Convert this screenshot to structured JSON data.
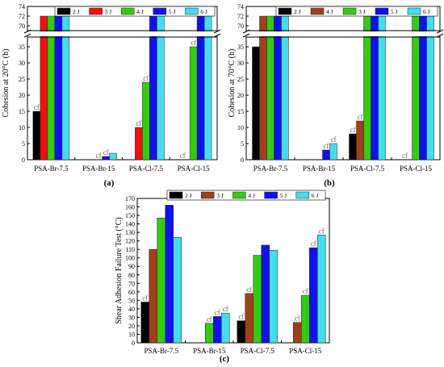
{
  "colors": {
    "2J": "#000000",
    "3J": "#ee1111",
    "4J": "#33cc11",
    "5J": "#1111ee",
    "6J": "#44ddee",
    "3J_brown": "#a0401a",
    "cf_label": "#666666"
  },
  "panels": [
    {
      "label": "(a)"
    },
    {
      "label": "(b)"
    },
    {
      "label": "(c)"
    }
  ],
  "chart_data": [
    {
      "type": "bar",
      "panel": "(a)",
      "ylabel": "Cohesion at 20°C (h)",
      "broken_axis": true,
      "ylim_lower": [
        0,
        38
      ],
      "ylim_upper": [
        69,
        74
      ],
      "yticks_lower": [
        0,
        5,
        10,
        15,
        20,
        25,
        30,
        35
      ],
      "yticks_upper": [
        70,
        72,
        74
      ],
      "categories": [
        "PSA-Br-7.5",
        "PSA-Br-15",
        "PSA-Cl-7.5",
        "PSA-Cl-15"
      ],
      "series": [
        {
          "name": "2 J",
          "color": "#000000",
          "values": [
            15,
            null,
            null,
            null
          ],
          "cf": [
            true,
            false,
            false,
            false
          ]
        },
        {
          "name": "3 J",
          "color": "#ee1111",
          "values": [
            72,
            null,
            10,
            null
          ],
          "cf": [
            false,
            false,
            true,
            false
          ]
        },
        {
          "name": "4 J",
          "color": "#33cc11",
          "values": [
            72,
            0,
            24,
            35
          ],
          "cf": [
            false,
            true,
            true,
            true
          ]
        },
        {
          "name": "5 J",
          "color": "#1111ee",
          "values": [
            72,
            1,
            72,
            72
          ],
          "cf": [
            false,
            true,
            false,
            false
          ]
        },
        {
          "name": "6 J",
          "color": "#44ddee",
          "values": [
            72,
            2,
            72,
            72
          ],
          "cf": [
            false,
            false,
            false,
            false
          ]
        }
      ],
      "zero_cf": [
        false,
        false,
        false,
        true
      ],
      "annotation": "cf",
      "legend": "top"
    },
    {
      "type": "bar",
      "panel": "(b)",
      "ylabel": "Cohesion at 70°C (h)",
      "broken_axis": true,
      "ylim_lower": [
        0,
        38
      ],
      "ylim_upper": [
        69,
        74
      ],
      "yticks_lower": [
        0,
        5,
        10,
        15,
        20,
        25,
        30,
        35
      ],
      "yticks_upper": [
        70,
        72,
        74
      ],
      "categories": [
        "PSA-Br-7.5",
        "PSA-Br-15",
        "PSA-Cl-7.5",
        "PSA-Cl-15"
      ],
      "series": [
        {
          "name": "2 J",
          "color": "#000000",
          "values": [
            35,
            null,
            8,
            null
          ],
          "cf": [
            false,
            false,
            true,
            false
          ]
        },
        {
          "name": "4 J",
          "color": "#a0401a",
          "values": [
            72,
            null,
            12,
            null
          ],
          "cf": [
            false,
            false,
            true,
            false
          ]
        },
        {
          "name": "3 J",
          "color": "#33cc11",
          "values": [
            72,
            null,
            72,
            72
          ],
          "cf": [
            false,
            false,
            false,
            false
          ]
        },
        {
          "name": "5 J",
          "color": "#1111ee",
          "values": [
            72,
            3,
            72,
            72
          ],
          "cf": [
            false,
            true,
            false,
            false
          ]
        },
        {
          "name": "6 J",
          "color": "#44ddee",
          "values": [
            72,
            5,
            72,
            72
          ],
          "cf": [
            false,
            true,
            false,
            false
          ]
        }
      ],
      "zero_cf": [
        false,
        false,
        false,
        true
      ],
      "annotation": "cf",
      "legend": "top"
    },
    {
      "type": "bar",
      "panel": "(c)",
      "ylabel": "Shear Adhesion Failure Test (°C)",
      "broken_axis": false,
      "ylim": [
        0,
        170
      ],
      "yticks": [
        0,
        10,
        20,
        30,
        40,
        50,
        60,
        70,
        80,
        90,
        100,
        110,
        120,
        130,
        140,
        150,
        160,
        170
      ],
      "categories": [
        "PSA-Br-7.5",
        "PSA-Br-15",
        "PSA-Cl-7.5",
        "PSA-Cl-15"
      ],
      "series": [
        {
          "name": "2 J",
          "color": "#000000",
          "values": [
            48,
            null,
            26,
            null
          ],
          "cf": [
            true,
            false,
            true,
            false
          ]
        },
        {
          "name": "3 J",
          "color": "#a0401a",
          "values": [
            110,
            null,
            58,
            24
          ],
          "cf": [
            false,
            false,
            true,
            true
          ]
        },
        {
          "name": "4 J",
          "color": "#33cc11",
          "values": [
            147,
            23,
            103,
            56
          ],
          "cf": [
            false,
            true,
            false,
            true
          ]
        },
        {
          "name": "5 J",
          "color": "#1111ee",
          "values": [
            162,
            31,
            115,
            112
          ],
          "cf": [
            false,
            true,
            false,
            true
          ]
        },
        {
          "name": "6 J",
          "color": "#44ddee",
          "values": [
            124,
            35,
            109,
            127
          ],
          "cf": [
            false,
            true,
            false,
            true
          ]
        }
      ],
      "annotation": "cf",
      "legend": "top"
    }
  ]
}
